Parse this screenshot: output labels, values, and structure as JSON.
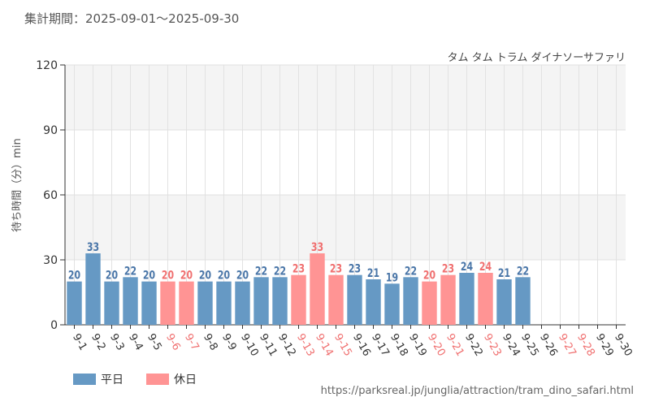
{
  "header": {
    "period": "集計期間：2025-09-01～2025-09-30",
    "attraction": "タム タム トラム ダイナソーサファリ"
  },
  "legend": {
    "weekday": "平日",
    "holiday": "休日"
  },
  "source": "https://parksreal.jp/junglia/attraction/tram_dino_safari.html",
  "colors": {
    "weekday": "#6699c4",
    "holiday": "#ff9494",
    "weekday_label": "#4a76a8",
    "holiday_label": "#f07070"
  },
  "chart_data": {
    "type": "bar",
    "ylabel": "待ち時間（分）min",
    "ylim": [
      0,
      120
    ],
    "yticks": [
      0,
      30,
      60,
      90,
      120
    ],
    "grid": true,
    "legend_position": "bottom-left",
    "categories": [
      "9-1",
      "9-2",
      "9-3",
      "9-4",
      "9-5",
      "9-6",
      "9-7",
      "9-8",
      "9-9",
      "9-10",
      "9-11",
      "9-12",
      "9-13",
      "9-14",
      "9-15",
      "9-16",
      "9-17",
      "9-18",
      "9-19",
      "9-20",
      "9-21",
      "9-22",
      "9-23",
      "9-24",
      "9-25",
      "9-26",
      "9-27",
      "9-28",
      "9-29",
      "9-30"
    ],
    "values": [
      20,
      33,
      20,
      22,
      20,
      20,
      20,
      20,
      20,
      20,
      22,
      22,
      23,
      33,
      23,
      23,
      21,
      19,
      22,
      20,
      23,
      24,
      24,
      21,
      22,
      null,
      null,
      null,
      null,
      null
    ],
    "day_type": [
      "weekday",
      "weekday",
      "weekday",
      "weekday",
      "weekday",
      "holiday",
      "holiday",
      "weekday",
      "weekday",
      "weekday",
      "weekday",
      "weekday",
      "holiday",
      "holiday",
      "holiday",
      "weekday",
      "weekday",
      "weekday",
      "weekday",
      "holiday",
      "holiday",
      "weekday",
      "holiday",
      "weekday",
      "weekday",
      "weekday",
      "holiday",
      "holiday",
      "weekday",
      "weekday"
    ]
  }
}
